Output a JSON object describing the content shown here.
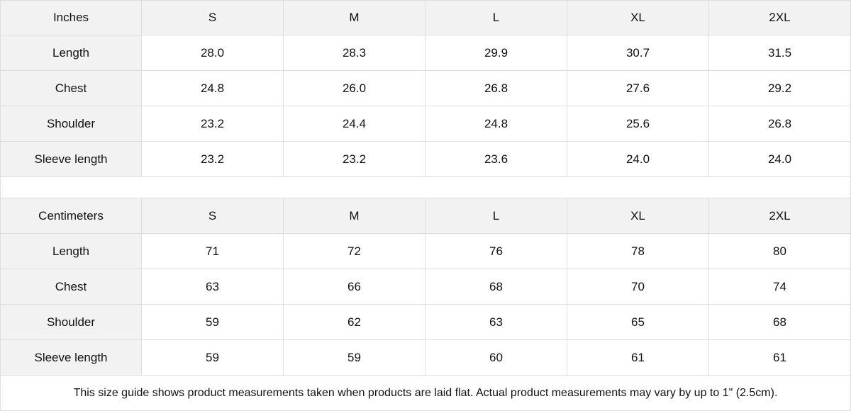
{
  "tables": [
    {
      "unit": "Inches",
      "sizes": [
        "S",
        "M",
        "L",
        "XL",
        "2XL"
      ],
      "rows": [
        {
          "label": "Length",
          "values": [
            "28.0",
            "28.3",
            "29.9",
            "30.7",
            "31.5"
          ]
        },
        {
          "label": "Chest",
          "values": [
            "24.8",
            "26.0",
            "26.8",
            "27.6",
            "29.2"
          ]
        },
        {
          "label": "Shoulder",
          "values": [
            "23.2",
            "24.4",
            "24.8",
            "25.6",
            "26.8"
          ]
        },
        {
          "label": "Sleeve length",
          "values": [
            "23.2",
            "23.2",
            "23.6",
            "24.0",
            "24.0"
          ]
        }
      ]
    },
    {
      "unit": "Centimeters",
      "sizes": [
        "S",
        "M",
        "L",
        "XL",
        "2XL"
      ],
      "rows": [
        {
          "label": "Length",
          "values": [
            "71",
            "72",
            "76",
            "78",
            "80"
          ]
        },
        {
          "label": "Chest",
          "values": [
            "63",
            "66",
            "68",
            "70",
            "74"
          ]
        },
        {
          "label": "Shoulder",
          "values": [
            "59",
            "62",
            "63",
            "65",
            "68"
          ]
        },
        {
          "label": "Sleeve length",
          "values": [
            "59",
            "59",
            "60",
            "61",
            "61"
          ]
        }
      ]
    }
  ],
  "footer_note": "This size guide shows product measurements taken when products are laid flat.  Actual product measurements may vary by up to 1\" (2.5cm)."
}
